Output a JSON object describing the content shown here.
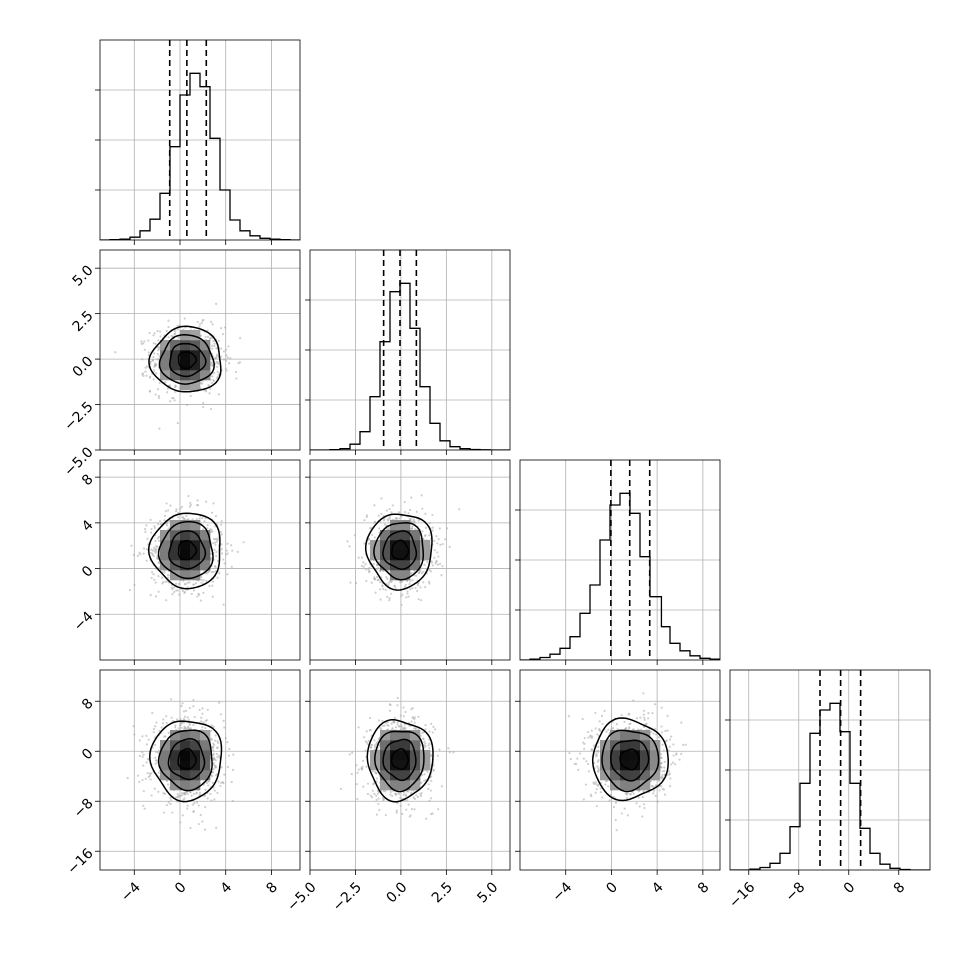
{
  "chart_data": {
    "type": "corner",
    "title": "",
    "grid": true,
    "parameters": [
      {
        "index": 0,
        "range": [
          -7.0,
          10.5
        ],
        "ticks": [
          -4,
          0,
          4,
          8
        ],
        "tick_labels": [
          "−4",
          "0",
          "4",
          "8"
        ],
        "mean": 0.6,
        "sd": 1.55,
        "quantiles": [
          -0.9,
          0.6,
          2.3
        ]
      },
      {
        "index": 1,
        "range": [
          -5.0,
          6.0
        ],
        "ticks": [
          -5.0,
          -2.5,
          0.0,
          2.5,
          5.0
        ],
        "tick_labels": [
          "−5.0",
          "−2.5",
          "0.0",
          "2.5",
          "5.0"
        ],
        "mean": -0.05,
        "sd": 0.9,
        "quantiles": [
          -0.95,
          -0.05,
          0.85
        ]
      },
      {
        "index": 2,
        "range": [
          -8.0,
          9.5
        ],
        "ticks": [
          -4,
          0,
          4,
          8
        ],
        "tick_labels": [
          "−4",
          "0",
          "4",
          "8"
        ],
        "mean": 1.6,
        "sd": 1.65,
        "quantiles": [
          -0.05,
          1.6,
          3.35
        ]
      },
      {
        "index": 3,
        "range": [
          -19.0,
          13.0
        ],
        "ticks": [
          -16,
          -8,
          0,
          8
        ],
        "tick_labels": [
          "−16",
          "−8",
          "0",
          "8"
        ],
        "mean": -1.3,
        "sd": 3.2,
        "quantiles": [
          -4.6,
          -1.3,
          1.9
        ]
      }
    ],
    "histograms": [
      {
        "param": 0,
        "bin_edges": [
          -7.0,
          -6.125,
          -5.25,
          -4.375,
          -3.5,
          -2.625,
          -1.75,
          -0.875,
          0.0,
          0.875,
          1.75,
          2.625,
          3.5,
          4.375,
          5.25,
          6.125,
          7.0,
          7.875,
          8.75,
          9.625,
          10.5
        ],
        "counts": [
          0,
          2,
          5,
          17,
          55,
          125,
          280,
          560,
          870,
          1000,
          920,
          610,
          300,
          120,
          55,
          25,
          10,
          5,
          2,
          0
        ]
      },
      {
        "param": 1,
        "bin_edges": [
          -5.0,
          -4.45,
          -3.9,
          -3.35,
          -2.8,
          -2.25,
          -1.7,
          -1.15,
          -0.6,
          -0.05,
          0.5,
          1.05,
          1.6,
          2.15,
          2.7,
          3.25,
          3.8,
          4.35,
          4.9,
          5.45,
          6.0
        ],
        "counts": [
          0,
          0,
          2,
          8,
          35,
          110,
          320,
          650,
          950,
          1000,
          730,
          380,
          160,
          55,
          20,
          8,
          3,
          1,
          0,
          0
        ]
      },
      {
        "param": 2,
        "bin_edges": [
          -8.0,
          -7.125,
          -6.25,
          -5.375,
          -4.5,
          -3.625,
          -2.75,
          -1.875,
          -1.0,
          -0.125,
          0.75,
          1.625,
          2.5,
          3.375,
          4.375,
          5.125,
          6.0,
          6.875,
          7.75,
          8.625,
          9.5
        ],
        "counts": [
          0,
          5,
          15,
          35,
          70,
          140,
          280,
          450,
          720,
          930,
          1000,
          880,
          620,
          380,
          200,
          100,
          55,
          25,
          10,
          5
        ]
      },
      {
        "param": 3,
        "bin_edges": [
          -19.0,
          -17.4,
          -15.8,
          -14.2,
          -12.6,
          -11.0,
          -9.4,
          -7.8,
          -6.2,
          -4.6,
          -3.0,
          -1.4,
          0.2,
          1.8,
          3.4,
          5.0,
          6.6,
          8.2,
          9.8,
          11.4,
          13.0
        ],
        "counts": [
          0,
          0,
          5,
          15,
          40,
          100,
          260,
          520,
          820,
          960,
          1000,
          830,
          520,
          250,
          100,
          35,
          10,
          3,
          0,
          0
        ]
      }
    ],
    "pairs": [
      {
        "x_param": 0,
        "y_param": 1
      },
      {
        "x_param": 0,
        "y_param": 2
      },
      {
        "x_param": 1,
        "y_param": 2
      },
      {
        "x_param": 0,
        "y_param": 3
      },
      {
        "x_param": 1,
        "y_param": 3
      },
      {
        "x_param": 2,
        "y_param": 3
      }
    ],
    "contour_levels_sigma": [
      0.5,
      1.0,
      1.5,
      2.0
    ]
  }
}
